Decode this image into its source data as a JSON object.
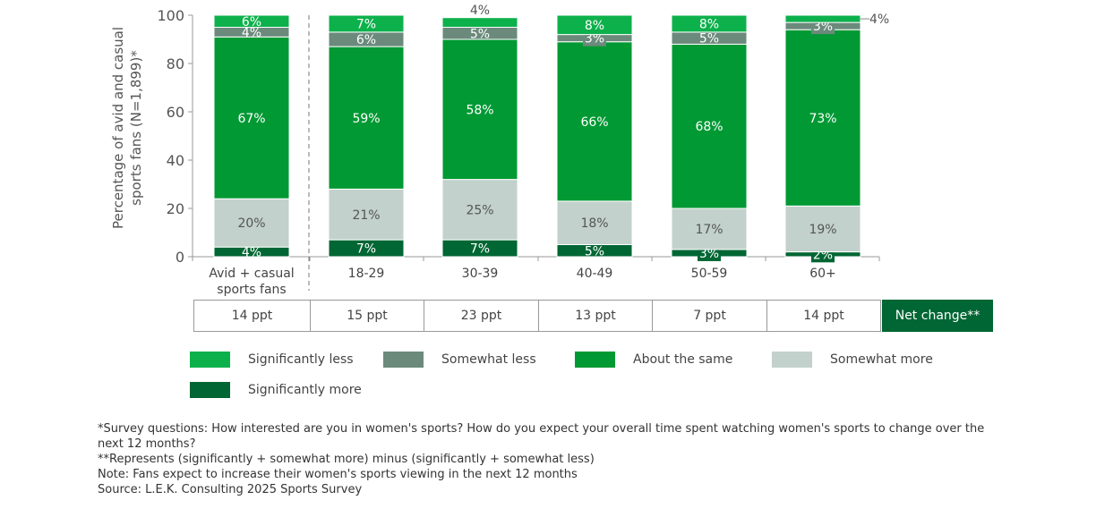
{
  "chart_data": {
    "type": "bar",
    "stacked": true,
    "ylabel": "Percentage of avid and casual sports fans (N=1,899)*",
    "ylim": [
      0,
      100
    ],
    "yticks": [
      0,
      20,
      40,
      60,
      80,
      100
    ],
    "categories": [
      "Avid + casual sports fans",
      "18-29",
      "30-39",
      "40-49",
      "50-59",
      "60+"
    ],
    "series": [
      {
        "name": "Significantly more",
        "color": "#006633",
        "values": [
          4,
          7,
          7,
          5,
          3,
          2
        ]
      },
      {
        "name": "Somewhat more",
        "color": "#c2d1cb",
        "values": [
          20,
          21,
          25,
          18,
          17,
          19
        ]
      },
      {
        "name": "About the same",
        "color": "#009933",
        "values": [
          67,
          59,
          58,
          66,
          68,
          73
        ]
      },
      {
        "name": "Somewhat less",
        "color": "#6b8a7c",
        "values": [
          4,
          6,
          5,
          3,
          5,
          3
        ]
      },
      {
        "name": "Significantly less",
        "color": "#0db14b",
        "values": [
          6,
          7,
          4,
          8,
          8,
          4
        ]
      }
    ],
    "legend_order": [
      "Significantly less",
      "Somewhat less",
      "About the same",
      "Somewhat more",
      "Significantly more"
    ],
    "net_change": {
      "label": "Net change**",
      "values": [
        "14 ppt",
        "15 ppt",
        "23 ppt",
        "13 ppt",
        "7 ppt",
        "14 ppt"
      ]
    }
  },
  "notes": [
    "*Survey questions: How interested are you in women's sports? How do you expect your overall time spent watching women's sports to change over the next 12 months?",
    "**Represents (significantly + somewhat more) minus (significantly + somewhat less)",
    "Note: Fans expect to increase their women's sports viewing in the next 12 months",
    "Source: L.E.K. Consulting 2025 Sports Survey"
  ]
}
